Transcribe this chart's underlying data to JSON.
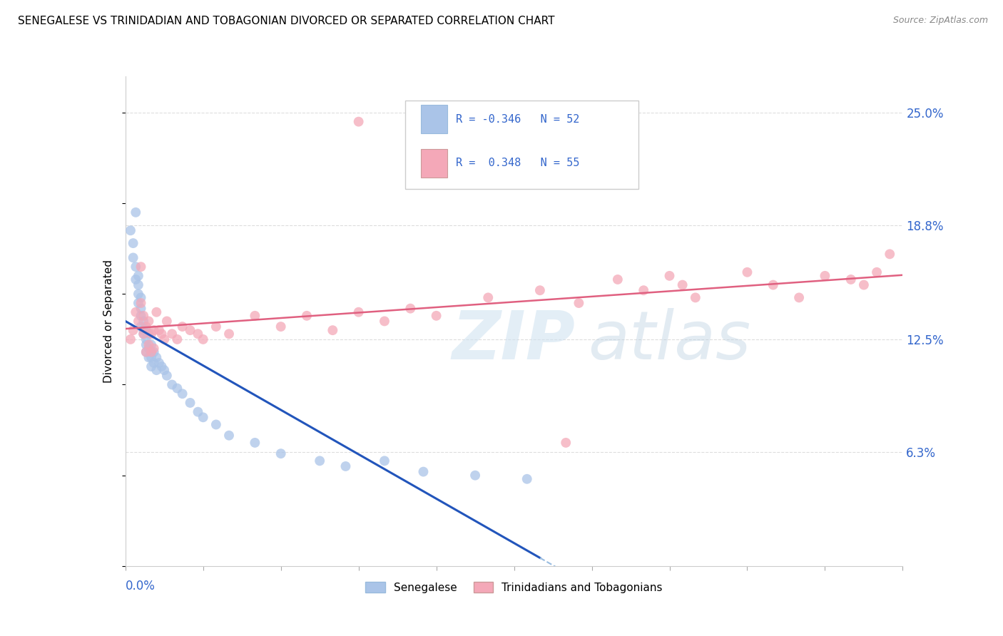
{
  "title": "SENEGALESE VS TRINIDADIAN AND TOBAGONIAN DIVORCED OR SEPARATED CORRELATION CHART",
  "source": "Source: ZipAtlas.com",
  "ylabel_label": "Divorced or Separated",
  "legend_label_blue": "Senegalese",
  "legend_label_pink": "Trinidadians and Tobagonians",
  "ytick_labels": [
    "6.3%",
    "12.5%",
    "18.8%",
    "25.0%"
  ],
  "ytick_values": [
    0.063,
    0.125,
    0.188,
    0.25
  ],
  "xlim": [
    0.0,
    0.3
  ],
  "ylim": [
    0.0,
    0.27
  ],
  "blue_color": "#aac4e8",
  "pink_color": "#f4a8b8",
  "blue_line_color": "#2255bb",
  "pink_line_color": "#e06080",
  "blue_dash_color": "#99bce0",
  "grid_color": "#dddddd",
  "blue_x": [
    0.002,
    0.003,
    0.003,
    0.004,
    0.004,
    0.004,
    0.005,
    0.005,
    0.005,
    0.005,
    0.006,
    0.006,
    0.006,
    0.006,
    0.007,
    0.007,
    0.007,
    0.008,
    0.008,
    0.008,
    0.008,
    0.009,
    0.009,
    0.009,
    0.01,
    0.01,
    0.01,
    0.01,
    0.011,
    0.011,
    0.012,
    0.012,
    0.013,
    0.014,
    0.015,
    0.016,
    0.018,
    0.02,
    0.022,
    0.025,
    0.028,
    0.03,
    0.035,
    0.04,
    0.05,
    0.06,
    0.075,
    0.085,
    0.1,
    0.115,
    0.135,
    0.155
  ],
  "blue_y": [
    0.185,
    0.178,
    0.17,
    0.195,
    0.165,
    0.158,
    0.16,
    0.155,
    0.15,
    0.145,
    0.148,
    0.142,
    0.138,
    0.132,
    0.135,
    0.13,
    0.128,
    0.13,
    0.125,
    0.122,
    0.118,
    0.128,
    0.12,
    0.115,
    0.122,
    0.118,
    0.115,
    0.11,
    0.118,
    0.112,
    0.115,
    0.108,
    0.112,
    0.11,
    0.108,
    0.105,
    0.1,
    0.098,
    0.095,
    0.09,
    0.085,
    0.082,
    0.078,
    0.072,
    0.068,
    0.062,
    0.058,
    0.055,
    0.058,
    0.052,
    0.05,
    0.048
  ],
  "pink_x": [
    0.002,
    0.003,
    0.004,
    0.005,
    0.006,
    0.006,
    0.007,
    0.007,
    0.008,
    0.008,
    0.009,
    0.009,
    0.01,
    0.01,
    0.011,
    0.011,
    0.012,
    0.013,
    0.014,
    0.015,
    0.016,
    0.018,
    0.02,
    0.022,
    0.025,
    0.028,
    0.03,
    0.035,
    0.04,
    0.05,
    0.06,
    0.07,
    0.08,
    0.09,
    0.1,
    0.11,
    0.12,
    0.14,
    0.16,
    0.175,
    0.19,
    0.2,
    0.21,
    0.215,
    0.22,
    0.24,
    0.25,
    0.26,
    0.27,
    0.28,
    0.285,
    0.09,
    0.17,
    0.29,
    0.295
  ],
  "pink_y": [
    0.125,
    0.13,
    0.14,
    0.135,
    0.145,
    0.165,
    0.128,
    0.138,
    0.132,
    0.118,
    0.122,
    0.135,
    0.128,
    0.118,
    0.13,
    0.12,
    0.14,
    0.13,
    0.128,
    0.125,
    0.135,
    0.128,
    0.125,
    0.132,
    0.13,
    0.128,
    0.125,
    0.132,
    0.128,
    0.138,
    0.132,
    0.138,
    0.13,
    0.14,
    0.135,
    0.142,
    0.138,
    0.148,
    0.152,
    0.145,
    0.158,
    0.152,
    0.16,
    0.155,
    0.148,
    0.162,
    0.155,
    0.148,
    0.16,
    0.158,
    0.155,
    0.245,
    0.068,
    0.162,
    0.172
  ]
}
